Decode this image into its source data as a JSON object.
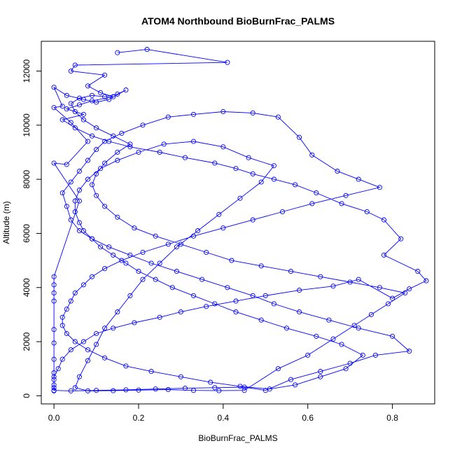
{
  "chart_data": {
    "type": "scatter",
    "title": "ATOM4 Northbound BioBurnFrac_PALMS",
    "xlabel": "BioBurnFrac_PALMS",
    "ylabel": "Altitude (m)",
    "xlim": [
      -0.03,
      0.9
    ],
    "ylim": [
      -300,
      13100
    ],
    "xticks": [
      0.0,
      0.2,
      0.4,
      0.6,
      0.8
    ],
    "xtick_labels": [
      "0.0",
      "0.2",
      "0.4",
      "0.6",
      "0.8"
    ],
    "yticks": [
      0,
      2000,
      4000,
      6000,
      8000,
      10000,
      12000
    ],
    "ytick_labels": [
      "0",
      "2000",
      "4000",
      "6000",
      "8000",
      "10000",
      "12000"
    ],
    "grid": false,
    "legend": "none",
    "series_color": "#0000ff",
    "marker": "open-circle",
    "connected_lines": true,
    "series": [
      {
        "points": [
          [
            0.15,
            12680
          ],
          [
            0.22,
            12800
          ],
          [
            0.41,
            12320
          ],
          [
            0.05,
            12220
          ],
          [
            0.04,
            12000
          ],
          [
            0.12,
            11850
          ],
          [
            0.08,
            11450
          ],
          [
            0.11,
            11200
          ],
          [
            0.14,
            11050
          ],
          [
            0.09,
            10900
          ],
          [
            0.06,
            10750
          ],
          [
            0.03,
            10600
          ],
          [
            0.07,
            10400
          ],
          [
            0.02,
            10200
          ],
          [
            0.05,
            9900
          ],
          [
            0.09,
            9600
          ],
          [
            0.13,
            9400
          ],
          [
            0.18,
            9200
          ],
          [
            0.25,
            9000
          ],
          [
            0.31,
            8800
          ],
          [
            0.38,
            8600
          ],
          [
            0.43,
            8400
          ],
          [
            0.47,
            8200
          ],
          [
            0.52,
            8000
          ],
          [
            0.57,
            7800
          ],
          [
            0.62,
            7500
          ],
          [
            0.68,
            7100
          ],
          [
            0.74,
            6800
          ],
          [
            0.78,
            6500
          ],
          [
            0.82,
            5800
          ],
          [
            0.78,
            5200
          ],
          [
            0.86,
            4600
          ],
          [
            0.88,
            4250
          ],
          [
            0.84,
            3950
          ],
          [
            0.8,
            3600
          ],
          [
            0.72,
            4300
          ],
          [
            0.66,
            4050
          ],
          [
            0.58,
            3900
          ],
          [
            0.5,
            3700
          ],
          [
            0.43,
            3500
          ],
          [
            0.36,
            3300
          ],
          [
            0.3,
            3100
          ],
          [
            0.25,
            2900
          ],
          [
            0.19,
            2700
          ],
          [
            0.14,
            2500
          ],
          [
            0.1,
            2300
          ],
          [
            0.07,
            2000
          ],
          [
            0.04,
            1700
          ],
          [
            0.02,
            1350
          ],
          [
            0.01,
            1000
          ],
          [
            0.0,
            700
          ],
          [
            0.0,
            400
          ],
          [
            0.0,
            200
          ],
          [
            0.04,
            180
          ],
          [
            0.1,
            200
          ],
          [
            0.17,
            220
          ],
          [
            0.24,
            250
          ],
          [
            0.31,
            280
          ],
          [
            0.38,
            300
          ],
          [
            0.45,
            320
          ],
          [
            0.5,
            200
          ],
          [
            0.56,
            600
          ],
          [
            0.63,
            900
          ],
          [
            0.7,
            1200
          ],
          [
            0.76,
            1500
          ],
          [
            0.84,
            1650
          ],
          [
            0.8,
            2200
          ],
          [
            0.72,
            2500
          ],
          [
            0.65,
            2800
          ],
          [
            0.58,
            3100
          ],
          [
            0.52,
            3400
          ],
          [
            0.47,
            3700
          ],
          [
            0.41,
            4000
          ],
          [
            0.35,
            4300
          ],
          [
            0.29,
            4600
          ],
          [
            0.23,
            4900
          ],
          [
            0.18,
            5200
          ],
          [
            0.13,
            5500
          ],
          [
            0.09,
            5800
          ],
          [
            0.06,
            6100
          ],
          [
            0.04,
            6500
          ],
          [
            0.03,
            7000
          ],
          [
            0.02,
            7500
          ],
          [
            0.04,
            7900
          ],
          [
            0.06,
            8300
          ],
          [
            0.08,
            8700
          ],
          [
            0.1,
            9100
          ],
          [
            0.12,
            9400
          ],
          [
            0.16,
            9700
          ],
          [
            0.21,
            10000
          ],
          [
            0.27,
            10300
          ],
          [
            0.33,
            10400
          ],
          [
            0.4,
            10500
          ],
          [
            0.47,
            10450
          ],
          [
            0.53,
            10300
          ],
          [
            0.58,
            9550
          ],
          [
            0.61,
            8900
          ],
          [
            0.67,
            8300
          ],
          [
            0.72,
            8000
          ],
          [
            0.77,
            7700
          ],
          [
            0.69,
            7400
          ],
          [
            0.61,
            7100
          ],
          [
            0.54,
            6800
          ],
          [
            0.47,
            6500
          ],
          [
            0.4,
            6200
          ],
          [
            0.33,
            5900
          ],
          [
            0.27,
            5600
          ],
          [
            0.21,
            5300
          ],
          [
            0.16,
            5000
          ],
          [
            0.12,
            4700
          ],
          [
            0.09,
            4400
          ],
          [
            0.07,
            4100
          ],
          [
            0.05,
            3800
          ],
          [
            0.04,
            3500
          ],
          [
            0.03,
            3200
          ],
          [
            0.02,
            2900
          ],
          [
            0.02,
            2600
          ],
          [
            0.03,
            2300
          ],
          [
            0.05,
            2000
          ],
          [
            0.08,
            1700
          ],
          [
            0.12,
            1400
          ],
          [
            0.17,
            1100
          ],
          [
            0.23,
            900
          ],
          [
            0.3,
            700
          ],
          [
            0.37,
            500
          ],
          [
            0.44,
            350
          ],
          [
            0.51,
            250
          ],
          [
            0.57,
            400
          ],
          [
            0.63,
            700
          ],
          [
            0.69,
            1000
          ],
          [
            0.73,
            1500
          ],
          [
            0.68,
            1900
          ],
          [
            0.62,
            2200
          ],
          [
            0.55,
            2500
          ],
          [
            0.49,
            2800
          ],
          [
            0.43,
            3100
          ],
          [
            0.38,
            3400
          ],
          [
            0.33,
            3700
          ],
          [
            0.28,
            4000
          ],
          [
            0.24,
            4300
          ],
          [
            0.2,
            4600
          ],
          [
            0.17,
            4900
          ],
          [
            0.14,
            5200
          ],
          [
            0.11,
            5500
          ],
          [
            0.09,
            5800
          ],
          [
            0.07,
            6100
          ],
          [
            0.06,
            6400
          ],
          [
            0.05,
            6800
          ],
          [
            0.05,
            7200
          ],
          [
            0.06,
            7600
          ],
          [
            0.08,
            8000
          ],
          [
            0.11,
            8400
          ],
          [
            0.15,
            8700
          ],
          [
            0.2,
            9000
          ],
          [
            0.26,
            9300
          ],
          [
            0.33,
            9400
          ],
          [
            0.4,
            9200
          ],
          [
            0.46,
            8800
          ],
          [
            0.52,
            8500
          ],
          [
            0.49,
            7900
          ],
          [
            0.44,
            7300
          ],
          [
            0.39,
            6700
          ],
          [
            0.34,
            6100
          ],
          [
            0.29,
            5500
          ],
          [
            0.25,
            4900
          ],
          [
            0.21,
            4300
          ],
          [
            0.18,
            3700
          ],
          [
            0.15,
            3100
          ],
          [
            0.12,
            2500
          ],
          [
            0.1,
            1900
          ],
          [
            0.08,
            1300
          ],
          [
            0.06,
            700
          ],
          [
            0.05,
            300
          ],
          [
            0.08,
            180
          ],
          [
            0.14,
            190
          ],
          [
            0.2,
            210
          ],
          [
            0.27,
            230
          ],
          [
            0.33,
            200
          ],
          [
            0.39,
            190
          ],
          [
            0.45,
            200
          ],
          [
            0.53,
            1000
          ],
          [
            0.6,
            1500
          ],
          [
            0.66,
            2100
          ],
          [
            0.71,
            2600
          ],
          [
            0.75,
            3000
          ],
          [
            0.79,
            3400
          ],
          [
            0.83,
            3800
          ],
          [
            0.77,
            4000
          ],
          [
            0.7,
            4200
          ],
          [
            0.63,
            4400
          ],
          [
            0.56,
            4600
          ],
          [
            0.49,
            4800
          ],
          [
            0.42,
            5000
          ],
          [
            0.36,
            5300
          ],
          [
            0.3,
            5600
          ],
          [
            0.24,
            5900
          ],
          [
            0.19,
            6200
          ],
          [
            0.15,
            6600
          ],
          [
            0.12,
            7000
          ],
          [
            0.1,
            7400
          ],
          [
            0.09,
            7800
          ],
          [
            0.1,
            8200
          ],
          [
            0.12,
            8600
          ],
          [
            0.15,
            9000
          ],
          [
            0.18,
            9300
          ],
          [
            0.14,
            9600
          ],
          [
            0.1,
            9900
          ],
          [
            0.07,
            10200
          ],
          [
            0.05,
            10500
          ],
          [
            0.04,
            10800
          ],
          [
            0.06,
            11000
          ],
          [
            0.09,
            11100
          ],
          [
            0.12,
            11050
          ],
          [
            0.15,
            11150
          ],
          [
            0.17,
            11300
          ],
          [
            0.13,
            10950
          ],
          [
            0.1,
            10850
          ],
          [
            0.07,
            10950
          ],
          [
            0.03,
            11100
          ],
          [
            0.0,
            11400
          ],
          [
            0.02,
            10700
          ],
          [
            0.0,
            10650
          ],
          [
            0.04,
            10100
          ],
          [
            0.08,
            9400
          ],
          [
            0.03,
            8550
          ],
          [
            0.0,
            8600
          ],
          [
            0.06,
            7200
          ],
          [
            0.0,
            4400
          ],
          [
            0.0,
            4100
          ],
          [
            0.0,
            3800
          ],
          [
            0.0,
            3500
          ],
          [
            0.0,
            2450
          ],
          [
            0.0,
            1950
          ],
          [
            0.0,
            1350
          ],
          [
            0.0,
            850
          ],
          [
            0.0,
            600
          ],
          [
            0.0,
            300
          ],
          [
            0.0,
            180
          ]
        ]
      }
    ]
  }
}
